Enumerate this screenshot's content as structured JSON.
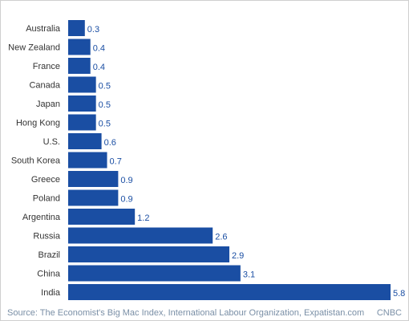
{
  "chart_data": {
    "type": "bar",
    "orientation": "horizontal",
    "categories": [
      "Australia",
      "New Zealand",
      "France",
      "Canada",
      "Japan",
      "Hong Kong",
      "U.S.",
      "South Korea",
      "Greece",
      "Poland",
      "Argentina",
      "Russia",
      "Brazil",
      "China",
      "India"
    ],
    "values": [
      0.3,
      0.4,
      0.4,
      0.5,
      0.5,
      0.5,
      0.6,
      0.7,
      0.9,
      0.9,
      1.2,
      2.6,
      2.9,
      3.1,
      5.8
    ],
    "data_labels": [
      "0.3",
      "0.4",
      "0.4",
      "0.5",
      "0.5",
      "0.5",
      "0.6",
      "0.7",
      "0.9",
      "0.9",
      "1.2",
      "2.6",
      "2.9",
      "3.1",
      "5.8"
    ],
    "title": "",
    "xlabel": "",
    "ylabel": "",
    "xlim": [
      0,
      5.8
    ],
    "grid": false,
    "legend": "none",
    "bar_color": "#1a4ea3",
    "label_color": "#1a4ea3",
    "category_color": "#333333"
  },
  "footer": {
    "source": "Source: The Economist's Big Mac Index, International Labour Organization, Expatistan.com",
    "brand": "CNBC"
  }
}
